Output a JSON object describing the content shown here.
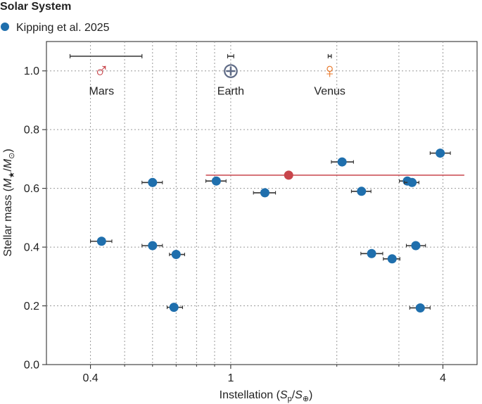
{
  "chart_data": {
    "type": "scatter",
    "legend": {
      "title": "Solar System",
      "entries": [
        {
          "label": "Kipping et al. 2025",
          "color": "#1f6fad"
        }
      ],
      "placement": "top-left"
    },
    "xlabel": {
      "main": "Instellation (",
      "s1": "S",
      "sub1": "p",
      "slash": "/",
      "s2": "S",
      "sub2": "⊕",
      "close": ")"
    },
    "ylabel": {
      "main": "Stellar mass (",
      "m1": "M",
      "sub1": "★",
      "slash": "/",
      "m2": "M",
      "sub2": "⊙",
      "close": ")"
    },
    "x_scale": "log",
    "xlim": [
      0.3,
      5.0
    ],
    "ylim": [
      0.0,
      1.1
    ],
    "x_ticks": [
      {
        "value": 0.4,
        "label": "0.4"
      },
      {
        "value": 1,
        "label": "1"
      },
      {
        "value": 4,
        "label": "4"
      }
    ],
    "x_minor_grid": [
      0.5,
      0.6,
      0.7,
      0.8,
      0.9,
      2,
      3
    ],
    "y_ticks": [
      {
        "value": 0.0,
        "label": "0.0"
      },
      {
        "value": 0.2,
        "label": "0.2"
      },
      {
        "value": 0.4,
        "label": "0.4"
      },
      {
        "value": 0.6,
        "label": "0.6"
      },
      {
        "value": 0.8,
        "label": "0.8"
      },
      {
        "value": 1.0,
        "label": "1.0"
      }
    ],
    "grid": true,
    "colors": {
      "points": "#1f6fad",
      "errorbar": "#333333",
      "highlight": "#c8454b",
      "mars": "#c8454b",
      "earth": "#5f6b86",
      "venus": "#e8782a"
    },
    "solar_system": [
      {
        "name": "Mars",
        "symbol": "♂",
        "x": 0.43,
        "y": 1.0,
        "x_err": [
          0.35,
          0.56
        ],
        "color": "#c8454b"
      },
      {
        "name": "Earth",
        "symbol": "⊕",
        "x": 1.0,
        "y": 1.0,
        "x_err": [
          0.98,
          1.02
        ],
        "color": "#5f6b86"
      },
      {
        "name": "Venus",
        "symbol": "♀",
        "x": 1.91,
        "y": 1.0,
        "x_err": [
          1.89,
          1.93
        ],
        "color": "#e8782a"
      }
    ],
    "highlight": {
      "x": 1.46,
      "y": 0.645,
      "x_err": [
        0.85,
        4.6
      ]
    },
    "series": [
      {
        "name": "Kipping et al. 2025",
        "points": [
          {
            "x": 0.43,
            "y": 0.42,
            "x_err": [
              0.4,
              0.46
            ]
          },
          {
            "x": 0.6,
            "y": 0.62,
            "x_err": [
              0.56,
              0.64
            ]
          },
          {
            "x": 0.6,
            "y": 0.405,
            "x_err": [
              0.56,
              0.64
            ]
          },
          {
            "x": 0.7,
            "y": 0.375,
            "x_err": [
              0.67,
              0.74
            ]
          },
          {
            "x": 0.69,
            "y": 0.195,
            "x_err": [
              0.66,
              0.73
            ]
          },
          {
            "x": 0.91,
            "y": 0.625,
            "x_err": [
              0.85,
              0.97
            ]
          },
          {
            "x": 1.25,
            "y": 0.585,
            "x_err": [
              1.16,
              1.34
            ]
          },
          {
            "x": 2.07,
            "y": 0.69,
            "x_err": [
              1.93,
              2.23
            ]
          },
          {
            "x": 2.35,
            "y": 0.59,
            "x_err": [
              2.2,
              2.5
            ]
          },
          {
            "x": 2.51,
            "y": 0.378,
            "x_err": [
              2.34,
              2.7
            ]
          },
          {
            "x": 2.87,
            "y": 0.36,
            "x_err": [
              2.71,
              3.02
            ]
          },
          {
            "x": 3.17,
            "y": 0.625,
            "x_err": [
              3.01,
              3.33
            ]
          },
          {
            "x": 3.27,
            "y": 0.62,
            "x_err": [
              3.11,
              3.42
            ]
          },
          {
            "x": 3.35,
            "y": 0.405,
            "x_err": [
              3.15,
              3.57
            ]
          },
          {
            "x": 3.45,
            "y": 0.193,
            "x_err": [
              3.22,
              3.68
            ]
          },
          {
            "x": 3.93,
            "y": 0.72,
            "x_err": [
              3.68,
              4.2
            ]
          }
        ]
      }
    ]
  }
}
